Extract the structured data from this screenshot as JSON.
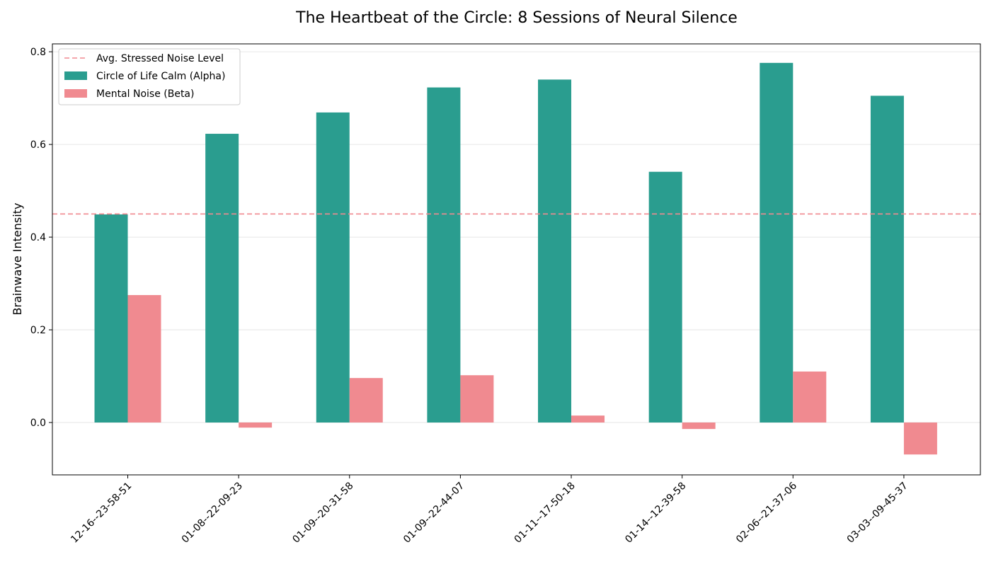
{
  "chart_data": {
    "type": "bar",
    "title": "The Heartbeat of the Circle: 8 Sessions of Neural Silence",
    "xlabel": "",
    "ylabel": "Brainwave Intensity",
    "categories": [
      "12-16--23-58-51",
      "01-08--22-09-23",
      "01-09--20-31-58",
      "01-09--22-44-07",
      "01-11--17-50-18",
      "01-14--12-39-58",
      "02-06--21-37-06",
      "03-03--09-45-37"
    ],
    "series": [
      {
        "name": "Circle of Life Calm (Alpha)",
        "color": "#2a9d8f",
        "values": [
          0.449,
          0.623,
          0.669,
          0.723,
          0.74,
          0.541,
          0.776,
          0.705
        ]
      },
      {
        "name": "Mental Noise (Beta)",
        "color": "#f08a90",
        "values": [
          0.275,
          -0.011,
          0.096,
          0.102,
          0.015,
          -0.014,
          0.11,
          -0.069
        ]
      }
    ],
    "reference_line": {
      "name": "Avg. Stressed Noise Level",
      "value": 0.45,
      "color": "#f08a90",
      "style": "dashed"
    },
    "ylim": [
      -0.113,
      0.817
    ],
    "yticks": [
      0.0,
      0.2,
      0.4,
      0.6,
      0.8
    ],
    "ytick_labels": [
      "0.0",
      "0.2",
      "0.4",
      "0.6",
      "0.8"
    ],
    "grid": "horizontal",
    "legend_position": "top-left"
  }
}
